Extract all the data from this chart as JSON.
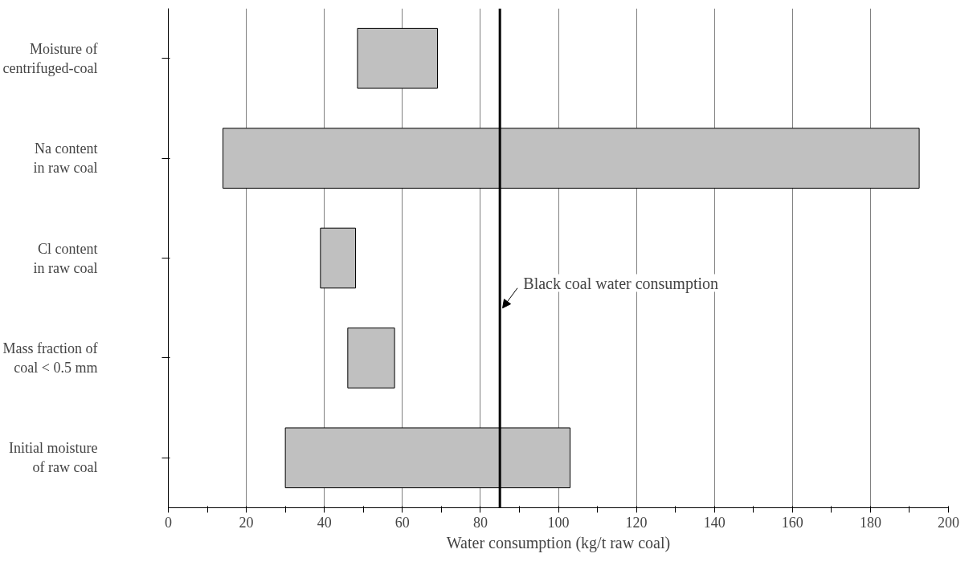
{
  "chart_data": {
    "type": "bar",
    "orientation": "horizontal",
    "xlabel": "Water consumption (kg/t raw coal)",
    "categories": [
      "Moisture of centrifuged-coal",
      "Na content in raw coal",
      "Cl content in raw coal",
      "Mass fraction of coal < 0.5 mm",
      "Initial moisture of raw coal"
    ],
    "base": [
      48.5,
      14,
      39,
      46,
      30
    ],
    "values": [
      20.5,
      178.5,
      9,
      12,
      73
    ],
    "color": "#c0c0c0",
    "xlim": [
      0,
      200
    ],
    "xticks": [
      0,
      {
        "value": 10,
        "label": null
      },
      20,
      {
        "value": 30,
        "label": null
      },
      40,
      {
        "value": 50,
        "label": null
      },
      60,
      {
        "value": 70,
        "label": null
      },
      80,
      {
        "value": 90,
        "label": null
      },
      100,
      {
        "value": 110,
        "label": null
      },
      120,
      {
        "value": 130,
        "label": null
      },
      140,
      {
        "value": 150,
        "label": null
      },
      160,
      {
        "value": 170,
        "label": null
      },
      180,
      {
        "value": 190,
        "label": null
      },
      200
    ],
    "grid": "x",
    "ref_lines": [
      {
        "axis": "x",
        "value": 85,
        "label": "Black coal water consumption",
        "color": "#000000"
      }
    ]
  }
}
